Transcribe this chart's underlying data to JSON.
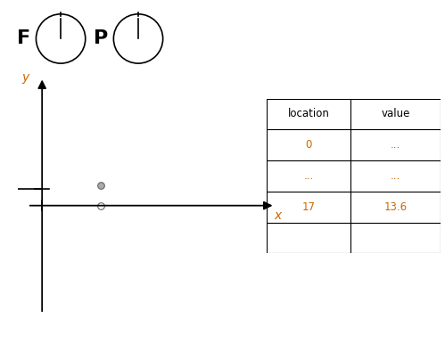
{
  "freedom_label": "F",
  "project_label": "P",
  "axis_line_color": "#000000",
  "axis_label_color": "#cc6600",
  "x_label": "x",
  "y_label": "y",
  "point_filled_color": "#aaaaaa",
  "point_empty_color": "#ffffff",
  "point_edge_color": "#666666",
  "table_location_col": [
    "location",
    "0",
    "...",
    "17",
    ""
  ],
  "table_value_col": [
    "value",
    "...",
    "...",
    "13.6",
    ""
  ],
  "bg_color": "#ffffff"
}
